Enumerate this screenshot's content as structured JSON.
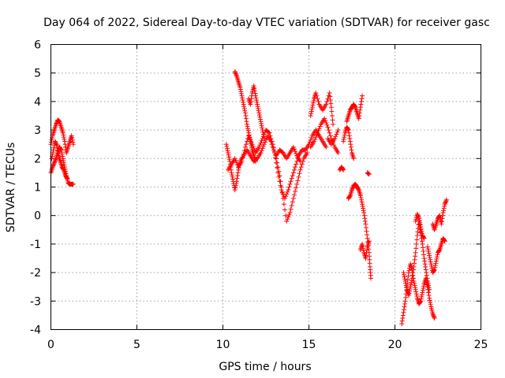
{
  "chart_data": {
    "type": "scatter",
    "title": "Day 064 of 2022, Sidereal Day-to-day VTEC variation (SDTVAR) for receiver gasc",
    "xlabel": "GPS time / hours",
    "ylabel": "SDTVAR / TECUs",
    "xlim": [
      0,
      25
    ],
    "ylim": [
      -4,
      6
    ],
    "x_ticks": [
      "0",
      "5",
      "10",
      "15",
      "20",
      "25"
    ],
    "y_ticks": [
      "-4",
      "-3",
      "-2",
      "-1",
      "0",
      "1",
      "2",
      "3",
      "4",
      "5",
      "6"
    ],
    "grid": true,
    "marker": "+",
    "color": "#ff0000",
    "series": [
      {
        "name": "SDTVAR",
        "segments": [
          [
            [
              0.0,
              2.5
            ],
            [
              0.1,
              2.8
            ],
            [
              0.2,
              3.0
            ],
            [
              0.3,
              3.2
            ],
            [
              0.4,
              3.35
            ],
            [
              0.5,
              3.3
            ],
            [
              0.6,
              3.1
            ],
            [
              0.7,
              2.9
            ],
            [
              0.8,
              2.6
            ],
            [
              0.9,
              2.2
            ],
            [
              1.0,
              2.4
            ],
            [
              1.1,
              2.6
            ],
            [
              1.2,
              2.8
            ],
            [
              1.3,
              2.5
            ]
          ],
          [
            [
              0.0,
              1.5
            ],
            [
              0.1,
              1.7
            ],
            [
              0.2,
              1.85
            ],
            [
              0.3,
              2.0
            ],
            [
              0.4,
              2.2
            ],
            [
              0.5,
              2.4
            ],
            [
              0.6,
              2.3
            ],
            [
              0.7,
              2.0
            ],
            [
              0.8,
              1.7
            ],
            [
              0.9,
              1.4
            ],
            [
              1.0,
              1.15
            ],
            [
              1.1,
              1.1
            ],
            [
              1.2,
              1.1
            ],
            [
              1.3,
              1.1
            ]
          ],
          [
            [
              0.05,
              2.0
            ],
            [
              0.15,
              2.3
            ],
            [
              0.25,
              2.6
            ],
            [
              0.35,
              2.45
            ],
            [
              0.45,
              2.1
            ],
            [
              0.55,
              1.9
            ],
            [
              0.65,
              1.7
            ],
            [
              0.75,
              1.6
            ],
            [
              0.85,
              1.4
            ],
            [
              0.95,
              1.3
            ]
          ],
          [
            [
              10.2,
              2.5
            ],
            [
              10.3,
              2.2
            ],
            [
              10.4,
              1.9
            ],
            [
              10.5,
              1.5
            ],
            [
              10.6,
              1.2
            ],
            [
              10.7,
              0.9
            ],
            [
              10.8,
              1.2
            ],
            [
              10.9,
              1.6
            ],
            [
              11.0,
              1.9
            ],
            [
              11.2,
              2.1
            ],
            [
              11.4,
              2.3
            ],
            [
              11.6,
              2.1
            ],
            [
              11.8,
              1.9
            ],
            [
              12.0,
              2.0
            ],
            [
              12.2,
              2.2
            ],
            [
              12.4,
              2.5
            ],
            [
              12.6,
              2.8
            ],
            [
              12.8,
              2.6
            ],
            [
              13.0,
              2.2
            ],
            [
              13.2,
              1.5
            ],
            [
              13.4,
              0.9
            ],
            [
              13.6,
              0.6
            ],
            [
              13.8,
              0.9
            ],
            [
              14.0,
              1.3
            ],
            [
              14.2,
              1.7
            ],
            [
              14.4,
              2.1
            ],
            [
              14.6,
              2.3
            ],
            [
              14.8,
              2.3
            ],
            [
              15.0,
              2.5
            ],
            [
              15.2,
              2.8
            ],
            [
              15.4,
              3.0
            ],
            [
              15.6,
              2.8
            ],
            [
              15.8,
              2.6
            ],
            [
              16.0,
              2.4
            ]
          ],
          [
            [
              10.3,
              1.6
            ],
            [
              10.5,
              1.8
            ],
            [
              10.7,
              2.0
            ],
            [
              10.9,
              1.7
            ],
            [
              11.1,
              1.9
            ],
            [
              11.3,
              2.4
            ],
            [
              11.5,
              2.8
            ],
            [
              11.7,
              2.5
            ],
            [
              11.9,
              2.2
            ],
            [
              12.1,
              2.4
            ],
            [
              12.3,
              2.7
            ],
            [
              12.5,
              3.0
            ],
            [
              12.7,
              2.9
            ],
            [
              12.9,
              2.5
            ],
            [
              13.1,
              2.0
            ],
            [
              13.3,
              1.4
            ],
            [
              13.5,
              0.6
            ],
            [
              13.7,
              -0.2
            ],
            [
              13.9,
              0.1
            ],
            [
              14.1,
              0.6
            ],
            [
              14.3,
              1.1
            ],
            [
              14.5,
              1.6
            ],
            [
              14.7,
              2.0
            ],
            [
              14.9,
              2.2
            ]
          ],
          [
            [
              10.7,
              5.05
            ],
            [
              10.8,
              4.9
            ],
            [
              10.9,
              4.7
            ],
            [
              11.0,
              4.5
            ],
            [
              11.1,
              4.2
            ],
            [
              11.2,
              3.9
            ],
            [
              11.3,
              3.6
            ],
            [
              11.4,
              3.2
            ],
            [
              11.5,
              2.9
            ],
            [
              11.6,
              2.6
            ],
            [
              11.7,
              2.3
            ],
            [
              11.8,
              2.1
            ],
            [
              11.9,
              1.9
            ]
          ],
          [
            [
              11.5,
              4.1
            ],
            [
              11.6,
              3.9
            ],
            [
              11.7,
              4.3
            ],
            [
              11.8,
              4.55
            ],
            [
              11.9,
              4.2
            ],
            [
              12.0,
              3.9
            ],
            [
              12.1,
              3.6
            ],
            [
              12.2,
              3.3
            ],
            [
              12.3,
              3.0
            ],
            [
              12.4,
              2.7
            ]
          ],
          [
            [
              13.1,
              2.1
            ],
            [
              13.3,
              2.3
            ],
            [
              13.5,
              2.2
            ],
            [
              13.7,
              2.0
            ],
            [
              13.9,
              2.2
            ],
            [
              14.1,
              2.4
            ],
            [
              14.3,
              2.1
            ],
            [
              14.5,
              1.9
            ]
          ],
          [
            [
              15.1,
              3.5
            ],
            [
              15.2,
              3.8
            ],
            [
              15.3,
              4.1
            ],
            [
              15.4,
              4.3
            ],
            [
              15.6,
              3.9
            ],
            [
              15.8,
              3.7
            ],
            [
              16.0,
              3.9
            ],
            [
              16.2,
              4.3
            ],
            [
              16.3,
              3.8
            ],
            [
              16.4,
              3.2
            ]
          ],
          [
            [
              15.1,
              2.4
            ],
            [
              15.3,
              2.6
            ],
            [
              15.5,
              2.9
            ],
            [
              15.7,
              3.2
            ],
            [
              15.9,
              3.4
            ],
            [
              16.1,
              3.1
            ],
            [
              16.3,
              2.7
            ],
            [
              16.5,
              2.4
            ],
            [
              16.7,
              2.2
            ]
          ],
          [
            [
              16.1,
              2.7
            ],
            [
              16.3,
              2.5
            ],
            [
              16.5,
              2.7
            ],
            [
              16.7,
              3.0
            ]
          ],
          [
            [
              16.8,
              1.6
            ],
            [
              16.9,
              1.7
            ],
            [
              17.0,
              1.6
            ]
          ],
          [
            [
              17.0,
              2.6
            ],
            [
              17.1,
              2.9
            ],
            [
              17.2,
              3.1
            ],
            [
              17.3,
              3.0
            ],
            [
              17.4,
              2.6
            ],
            [
              17.5,
              2.2
            ],
            [
              17.6,
              2.0
            ]
          ],
          [
            [
              17.2,
              3.3
            ],
            [
              17.3,
              3.5
            ],
            [
              17.4,
              3.7
            ],
            [
              17.5,
              3.8
            ],
            [
              17.6,
              3.9
            ],
            [
              17.7,
              3.8
            ],
            [
              17.8,
              3.6
            ],
            [
              17.9,
              3.4
            ],
            [
              18.0,
              3.8
            ],
            [
              18.1,
              4.2
            ]
          ],
          [
            [
              17.3,
              0.6
            ],
            [
              17.4,
              0.7
            ],
            [
              17.5,
              0.9
            ],
            [
              17.6,
              1.05
            ],
            [
              17.7,
              1.1
            ],
            [
              17.8,
              1.0
            ],
            [
              17.9,
              0.9
            ],
            [
              18.0,
              0.7
            ],
            [
              18.1,
              0.4
            ],
            [
              18.2,
              0.1
            ],
            [
              18.3,
              -0.3
            ],
            [
              18.4,
              -0.8
            ],
            [
              18.5,
              -1.3
            ],
            [
              18.55,
              -1.8
            ],
            [
              18.6,
              -2.2
            ]
          ],
          [
            [
              18.0,
              -1.2
            ],
            [
              18.1,
              -1.0
            ],
            [
              18.2,
              -1.3
            ],
            [
              18.3,
              -1.5
            ],
            [
              18.4,
              -1.1
            ],
            [
              18.5,
              -0.9
            ]
          ],
          [
            [
              18.4,
              1.5
            ],
            [
              18.5,
              1.45
            ]
          ],
          [
            [
              20.4,
              -3.8
            ],
            [
              20.5,
              -3.4
            ],
            [
              20.6,
              -3.0
            ],
            [
              20.7,
              -2.5
            ],
            [
              20.8,
              -2.0
            ],
            [
              20.9,
              -1.7
            ],
            [
              21.0,
              -1.9
            ],
            [
              21.1,
              -2.3
            ],
            [
              21.2,
              -2.6
            ],
            [
              21.3,
              -2.9
            ],
            [
              21.4,
              -3.1
            ],
            [
              21.5,
              -3.0
            ],
            [
              21.6,
              -2.7
            ],
            [
              21.7,
              -2.4
            ],
            [
              21.8,
              -2.2
            ],
            [
              21.9,
              -2.5
            ],
            [
              22.0,
              -2.9
            ],
            [
              22.1,
              -3.2
            ],
            [
              22.2,
              -3.45
            ],
            [
              22.3,
              -3.6
            ]
          ],
          [
            [
              20.5,
              -2.0
            ],
            [
              20.6,
              -2.3
            ],
            [
              20.7,
              -2.6
            ],
            [
              20.8,
              -2.8
            ],
            [
              20.9,
              -2.5
            ],
            [
              21.0,
              -2.2
            ],
            [
              21.1,
              -1.8
            ],
            [
              21.2,
              -1.3
            ],
            [
              21.3,
              -0.7
            ],
            [
              21.4,
              -0.2
            ],
            [
              21.5,
              -0.6
            ],
            [
              21.6,
              -1.0
            ],
            [
              21.7,
              -1.5
            ],
            [
              21.8,
              -1.9
            ],
            [
              21.9,
              -2.3
            ],
            [
              22.0,
              -2.6
            ]
          ],
          [
            [
              21.2,
              -0.2
            ],
            [
              21.3,
              0.05
            ],
            [
              21.4,
              -0.1
            ],
            [
              21.5,
              -0.4
            ],
            [
              21.6,
              -0.7
            ],
            [
              21.7,
              -0.8
            ]
          ],
          [
            [
              21.9,
              -1.1
            ],
            [
              22.0,
              -1.4
            ],
            [
              22.1,
              -1.7
            ],
            [
              22.2,
              -2.0
            ],
            [
              22.3,
              -1.9
            ],
            [
              22.4,
              -1.6
            ],
            [
              22.5,
              -1.3
            ],
            [
              22.6,
              -1.2
            ],
            [
              22.7,
              -1.0
            ],
            [
              22.8,
              -0.8
            ],
            [
              22.9,
              -0.9
            ]
          ],
          [
            [
              22.2,
              -0.3
            ],
            [
              22.3,
              -0.5
            ],
            [
              22.4,
              -0.3
            ],
            [
              22.5,
              -0.1
            ],
            [
              22.6,
              0.0
            ],
            [
              22.7,
              -0.3
            ],
            [
              22.8,
              0.1
            ],
            [
              22.9,
              0.4
            ],
            [
              23.0,
              0.55
            ]
          ]
        ]
      }
    ]
  }
}
